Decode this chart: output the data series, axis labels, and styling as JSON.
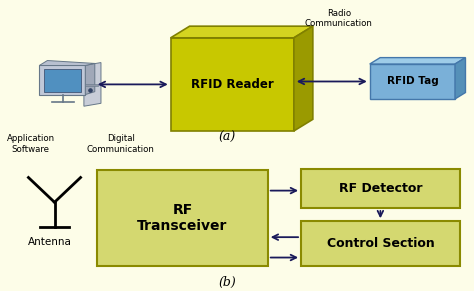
{
  "bg_color": "#fdfde8",
  "rfid_reader_front": "#c8c800",
  "rfid_reader_top": "#d4d420",
  "rfid_reader_right": "#9a9a00",
  "rfid_reader_edge": "#808000",
  "rfid_tag_front": "#7ab0d8",
  "rfid_tag_top": "#9ecce8",
  "rfid_tag_right": "#5590b8",
  "rfid_tag_edge": "#4477aa",
  "box_fill": "#d4d870",
  "box_edge": "#8a8a00",
  "text_color": "#000000",
  "arrow_color": "#1a1a5a",
  "label_a": "(a)",
  "label_b": "(b)",
  "rfid_reader_text": "RFID Reader",
  "rfid_tag_text": "RFID Tag",
  "rf_transceiver_text": "RF\nTransceiver",
  "rf_detector_text": "RF Detector",
  "control_section_text": "Control Section",
  "radio_comm_text": "Radio\nCommunication",
  "digital_comm_text": "Digital\nCommunication",
  "app_software_text": "Application\nSoftware",
  "antenna_text": "Antenna"
}
